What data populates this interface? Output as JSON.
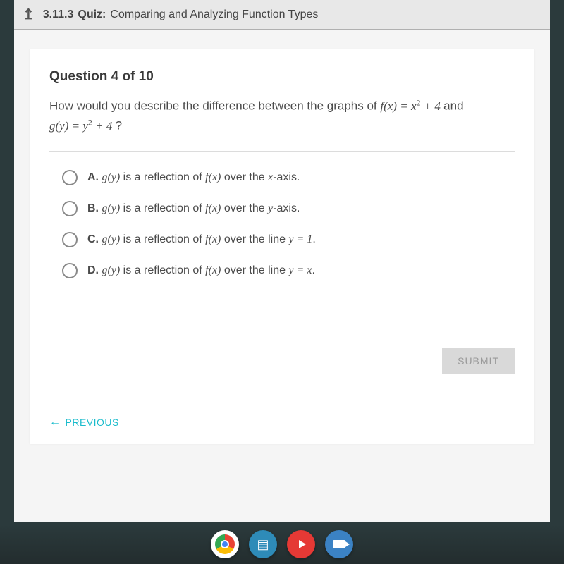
{
  "header": {
    "quiz_number": "3.11.3",
    "quiz_label": "Quiz:",
    "quiz_name": "Comparing and Analyzing Function Types"
  },
  "question": {
    "counter": "Question 4 of 10",
    "text_part1": "How would you describe the difference between the graphs of ",
    "eq1_lhs": "f(x) = ",
    "eq1_rhs_base": "x",
    "eq1_rhs_exp": "2",
    "eq1_rhs_tail": " + 4",
    "and_word": "  and",
    "eq2_lhs": "g(y) = ",
    "eq2_rhs_base": "y",
    "eq2_rhs_exp": "2",
    "eq2_rhs_tail": " + 4",
    "qmark": " ?"
  },
  "options": [
    {
      "letter": "A.",
      "pre": "g(y)",
      "mid": " is a reflection of ",
      "fx": "f(x)",
      "post": " over the ",
      "axis": "x",
      "tail": "-axis."
    },
    {
      "letter": "B.",
      "pre": "g(y)",
      "mid": " is a reflection of ",
      "fx": "f(x)",
      "post": " over the ",
      "axis": "y",
      "tail": "-axis."
    },
    {
      "letter": "C.",
      "pre": "g(y)",
      "mid": " is a reflection of ",
      "fx": "f(x)",
      "post": " over the line ",
      "axis": "y = 1",
      "tail": "."
    },
    {
      "letter": "D.",
      "pre": "g(y)",
      "mid": " is a reflection of ",
      "fx": "f(x)",
      "post": " over the line ",
      "axis": "y = x",
      "tail": "."
    }
  ],
  "buttons": {
    "submit": "SUBMIT",
    "previous": "PREVIOUS"
  },
  "colors": {
    "accent": "#1bbccc",
    "submit_bg": "#d9d9d9",
    "submit_fg": "#999999"
  }
}
